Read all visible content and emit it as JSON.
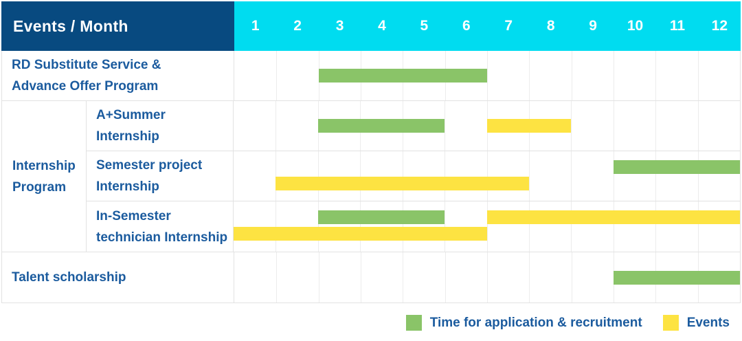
{
  "header": {
    "events_month_label": "Events / Month",
    "months": [
      "1",
      "2",
      "3",
      "4",
      "5",
      "6",
      "7",
      "8",
      "9",
      "10",
      "11",
      "12"
    ]
  },
  "labels": {
    "row1_line1": "RD Substitute Service &",
    "row1_line2": "Advance Offer Program",
    "group_line1": "Internship",
    "group_line2": "Program",
    "sub1_line1": "A+Summer",
    "sub1_line2": "Internship",
    "sub2_line1": "Semester project",
    "sub2_line2": "Internship",
    "sub3_line1": "In-Semester",
    "sub3_line2": "technician Internship",
    "row5": "Talent scholarship"
  },
  "legend": {
    "recruitment_label": "Time for application & recruitment",
    "events_label": "Events"
  },
  "colors": {
    "header_bg": "#084A80",
    "months_bg": "#00DCF0",
    "text_blue": "#1B5B9E",
    "recruitment_green": "#8AC468",
    "event_yellow": "#FDE342",
    "grid_line": "#ECECEC",
    "row_border": "#E2E2E2"
  },
  "chart_data": {
    "type": "table",
    "subtype": "gantt",
    "title": "Events / Month",
    "x_axis": {
      "label": "Month",
      "ticks": [
        "1",
        "2",
        "3",
        "4",
        "5",
        "6",
        "7",
        "8",
        "9",
        "10",
        "11",
        "12"
      ],
      "range": [
        1,
        12
      ]
    },
    "legend_position": "bottom-right",
    "grid": true,
    "legend": [
      {
        "name": "Time for application & recruitment",
        "color": "#8AC468"
      },
      {
        "name": "Events",
        "color": "#FDE342"
      }
    ],
    "rows": [
      {
        "event": "RD Substitute Service & Advance Offer Program",
        "group": null,
        "bars": [
          {
            "series": "Time for application & recruitment",
            "start_month": 3,
            "end_month": 6,
            "lane": "center"
          }
        ]
      },
      {
        "event": "A+Summer Internship",
        "group": "Internship Program",
        "bars": [
          {
            "series": "Time for application & recruitment",
            "start_month": 3,
            "end_month": 5,
            "lane": "center"
          },
          {
            "series": "Events",
            "start_month": 7,
            "end_month": 8,
            "lane": "center"
          }
        ]
      },
      {
        "event": "Semester project Internship",
        "group": "Internship Program",
        "bars": [
          {
            "series": "Time for application & recruitment",
            "start_month": 10,
            "end_month": 12,
            "lane": "top"
          },
          {
            "series": "Events",
            "start_month": 2,
            "end_month": 7,
            "lane": "bottom"
          }
        ]
      },
      {
        "event": "In-Semester technician Internship",
        "group": "Internship Program",
        "bars": [
          {
            "series": "Time for application & recruitment",
            "start_month": 3,
            "end_month": 5,
            "lane": "top"
          },
          {
            "series": "Events",
            "start_month": 7,
            "end_month": 12,
            "lane": "top"
          },
          {
            "series": "Events",
            "start_month": 1,
            "end_month": 6,
            "lane": "bottom"
          }
        ]
      },
      {
        "event": "Talent scholarship",
        "group": null,
        "bars": [
          {
            "series": "Time for application & recruitment",
            "start_month": 10,
            "end_month": 12,
            "lane": "center"
          }
        ]
      }
    ]
  }
}
